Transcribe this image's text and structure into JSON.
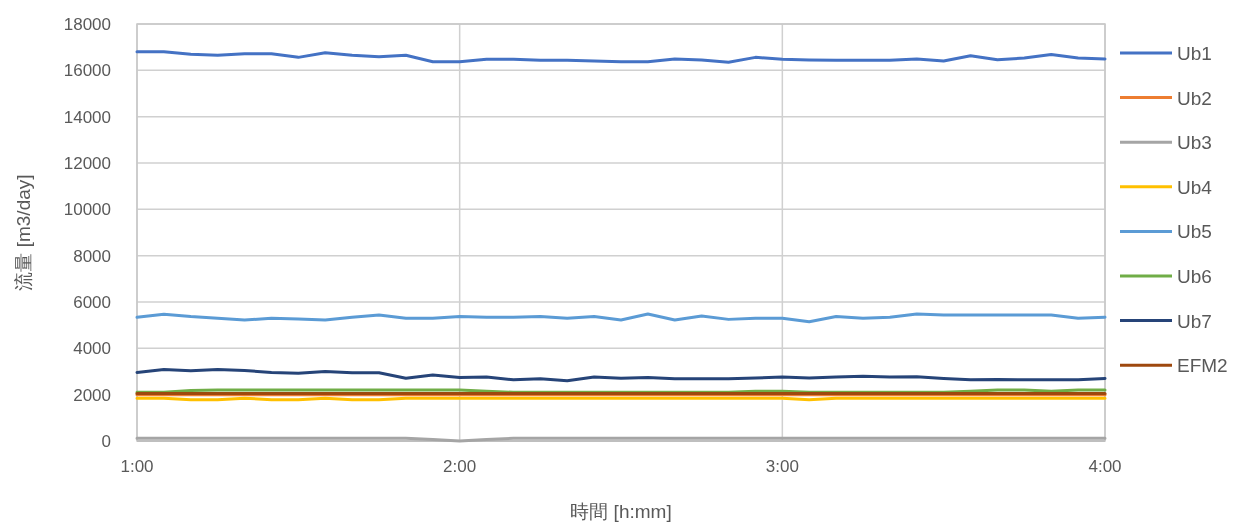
{
  "chart_data": {
    "type": "line",
    "xlabel": "時間 [h:mm]",
    "ylabel": "流量 [m3/day]",
    "x": [
      1,
      1.0833,
      1.1667,
      1.25,
      1.3333,
      1.4167,
      1.5,
      1.5833,
      1.6667,
      1.75,
      1.8333,
      1.9167,
      2,
      2.0833,
      2.1667,
      2.25,
      2.3333,
      2.4167,
      2.5,
      2.5833,
      2.6667,
      2.75,
      2.8333,
      2.9167,
      3,
      3.0833,
      3.1667,
      3.25,
      3.3333,
      3.4167,
      3.5,
      3.5833,
      3.6667,
      3.75,
      3.8333,
      3.9167,
      4
    ],
    "xlim": [
      1,
      4
    ],
    "xticks": [
      {
        "value": 1,
        "label": "1:00"
      },
      {
        "value": 2,
        "label": "2:00"
      },
      {
        "value": 3,
        "label": "3:00"
      },
      {
        "value": 4,
        "label": "4:00"
      }
    ],
    "ylim": [
      0,
      18000
    ],
    "yticks": [
      0,
      2000,
      4000,
      6000,
      8000,
      10000,
      12000,
      14000,
      16000,
      18000
    ],
    "grid": true,
    "legend": "right",
    "line_style": "solid",
    "series": [
      {
        "name": "Ub1",
        "color": "#4472c4",
        "values": [
          16800,
          16800,
          16690,
          16650,
          16720,
          16720,
          16560,
          16760,
          16650,
          16590,
          16650,
          16370,
          16370,
          16480,
          16480,
          16430,
          16430,
          16400,
          16370,
          16370,
          16490,
          16450,
          16350,
          16560,
          16480,
          16450,
          16430,
          16430,
          16440,
          16490,
          16400,
          16630,
          16460,
          16530,
          16680,
          16530,
          16490
        ]
      },
      {
        "name": "Ub2",
        "color": "#ed7d31",
        "values": [
          2000,
          2000,
          2000,
          2000,
          2000,
          2000,
          2000,
          2000,
          2000,
          2000,
          2000,
          2000,
          2000,
          2000,
          2000,
          2000,
          2000,
          2000,
          2000,
          2000,
          2000,
          2000,
          2000,
          2000,
          2000,
          2000,
          2000,
          2000,
          2000,
          2000,
          2000,
          2000,
          2000,
          2000,
          2000,
          2000,
          2000
        ]
      },
      {
        "name": "Ub3",
        "color": "#a5a5a5",
        "values": [
          120,
          120,
          120,
          120,
          120,
          120,
          120,
          120,
          120,
          120,
          120,
          60,
          0,
          60,
          120,
          120,
          120,
          120,
          120,
          120,
          120,
          120,
          120,
          120,
          120,
          120,
          120,
          120,
          120,
          120,
          120,
          120,
          120,
          120,
          120,
          120,
          120
        ]
      },
      {
        "name": "Ub4",
        "color": "#ffc000",
        "values": [
          1850,
          1850,
          1780,
          1780,
          1850,
          1780,
          1780,
          1850,
          1780,
          1780,
          1850,
          1850,
          1850,
          1850,
          1850,
          1850,
          1850,
          1850,
          1850,
          1850,
          1850,
          1850,
          1850,
          1850,
          1850,
          1780,
          1850,
          1850,
          1850,
          1850,
          1850,
          1850,
          1850,
          1850,
          1850,
          1850,
          1850
        ]
      },
      {
        "name": "Ub5",
        "color": "#5b9bd5",
        "values": [
          5340,
          5470,
          5370,
          5300,
          5220,
          5300,
          5270,
          5220,
          5340,
          5440,
          5300,
          5300,
          5370,
          5340,
          5340,
          5370,
          5300,
          5370,
          5220,
          5480,
          5220,
          5400,
          5250,
          5300,
          5300,
          5150,
          5370,
          5300,
          5340,
          5480,
          5440,
          5440,
          5440,
          5440,
          5440,
          5300,
          5340
        ]
      },
      {
        "name": "Ub6",
        "color": "#70ad47",
        "values": [
          2100,
          2100,
          2180,
          2200,
          2200,
          2200,
          2200,
          2200,
          2200,
          2200,
          2200,
          2200,
          2200,
          2150,
          2100,
          2100,
          2100,
          2100,
          2100,
          2100,
          2100,
          2100,
          2100,
          2150,
          2150,
          2100,
          2100,
          2100,
          2100,
          2100,
          2100,
          2150,
          2200,
          2200,
          2150,
          2200,
          2200
        ]
      },
      {
        "name": "Ub7",
        "color": "#264478",
        "values": [
          2960,
          3090,
          3030,
          3090,
          3040,
          2960,
          2920,
          3000,
          2950,
          2950,
          2710,
          2850,
          2740,
          2760,
          2640,
          2690,
          2600,
          2760,
          2710,
          2740,
          2690,
          2690,
          2690,
          2720,
          2760,
          2720,
          2760,
          2790,
          2760,
          2770,
          2700,
          2640,
          2660,
          2640,
          2640,
          2640,
          2700
        ]
      },
      {
        "name": "EFM2",
        "color": "#9e480e",
        "values": [
          2050,
          2050,
          2050,
          2050,
          2050,
          2050,
          2050,
          2050,
          2050,
          2050,
          2050,
          2050,
          2050,
          2050,
          2050,
          2050,
          2050,
          2050,
          2050,
          2050,
          2050,
          2050,
          2050,
          2050,
          2050,
          2050,
          2050,
          2050,
          2050,
          2050,
          2050,
          2050,
          2050,
          2050,
          2050,
          2050,
          2050
        ]
      }
    ]
  }
}
